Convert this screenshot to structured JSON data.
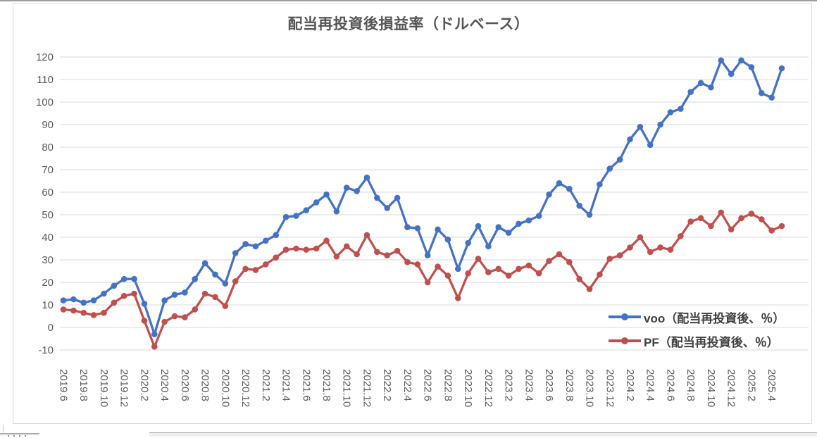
{
  "chart": {
    "title": "配当再投資後損益率（ドルベース）"
  },
  "chart_data": {
    "type": "line",
    "title": "配当再投資後損益率（ドルベース）",
    "x": [
      "2019.6",
      "2019.7",
      "2019.8",
      "2019.9",
      "2019.10",
      "2019.11",
      "2019.12",
      "2020.1",
      "2020.2",
      "2020.3",
      "2020.4",
      "2020.5",
      "2020.6",
      "2020.7",
      "2020.8",
      "2020.9",
      "2020.10",
      "2020.11",
      "2020.12",
      "2021.1",
      "2021.2",
      "2021.3",
      "2021.4",
      "2021.5",
      "2021.6",
      "2021.7",
      "2021.8",
      "2021.9",
      "2021.10",
      "2021.11",
      "2021.12",
      "2022.1",
      "2022.2",
      "2022.3",
      "2022.4",
      "2022.5",
      "2022.6",
      "2022.7",
      "2022.8",
      "2022.9",
      "2022.10",
      "2022.11",
      "2022.12",
      "2023.1",
      "2023.2",
      "2023.3",
      "2023.4",
      "2023.5",
      "2023.6",
      "2023.7",
      "2023.8",
      "2023.9",
      "2023.10",
      "2023.11",
      "2023.12",
      "2024.1",
      "2024.2",
      "2024.3",
      "2024.4",
      "2024.5",
      "2024.6",
      "2024.7",
      "2024.8",
      "2024.9",
      "2024.10",
      "2024.11",
      "2024.12",
      "2025.1",
      "2025.2",
      "2025.3",
      "2025.4",
      "2025.5"
    ],
    "x_tick_every": 2,
    "series": [
      {
        "name": "voo（配当再投資後、％）",
        "color": "#4472C4",
        "values": [
          12,
          12.5,
          11,
          12,
          15,
          18.5,
          21.5,
          21.5,
          10.5,
          -3,
          12,
          14.5,
          15.5,
          21.5,
          28.5,
          23.5,
          19.5,
          33,
          37,
          36,
          38.5,
          41,
          49,
          49.5,
          52,
          55.5,
          59,
          51.5,
          62,
          60.5,
          66.5,
          57.5,
          53,
          57.5,
          44.5,
          44,
          32,
          43.5,
          39,
          26,
          37.5,
          45,
          36,
          44.5,
          42,
          46,
          47.5,
          49.5,
          59,
          64,
          61.5,
          54,
          50,
          63.5,
          70.5,
          74.5,
          83.5,
          89,
          81,
          90,
          95.5,
          97,
          104.5,
          108.5,
          106.5,
          118.5,
          112.5,
          118.5,
          115.5,
          104,
          102,
          115
        ]
      },
      {
        "name": "PF（配当再投資後、％）",
        "color": "#C0504D",
        "values": [
          8,
          7.5,
          6.5,
          5.5,
          6.5,
          11,
          14,
          15,
          3,
          -8.5,
          2.5,
          5,
          4.5,
          8,
          15,
          13.5,
          9.5,
          20.5,
          26,
          25.5,
          28,
          31,
          34.5,
          35,
          34.5,
          35,
          38.5,
          31.5,
          36,
          32.5,
          41,
          33.5,
          32,
          34,
          29,
          28,
          20,
          27,
          23,
          13,
          24,
          30.5,
          24.5,
          26,
          23,
          26,
          27.5,
          24,
          29.5,
          32.5,
          29,
          21.5,
          17,
          23.5,
          30.5,
          32,
          35.5,
          40,
          33.5,
          35.5,
          34.5,
          40.5,
          47,
          48.5,
          45,
          51,
          43.5,
          48.5,
          50.5,
          48,
          43,
          45
        ]
      }
    ],
    "ylim": [
      -10,
      120
    ],
    "ytick_step": 10,
    "grid": true,
    "legend_position": "inside-right",
    "styles": {
      "grid_color": "#d9d9d9",
      "axis_text_color": "#595959",
      "title_color": "#555555"
    }
  }
}
